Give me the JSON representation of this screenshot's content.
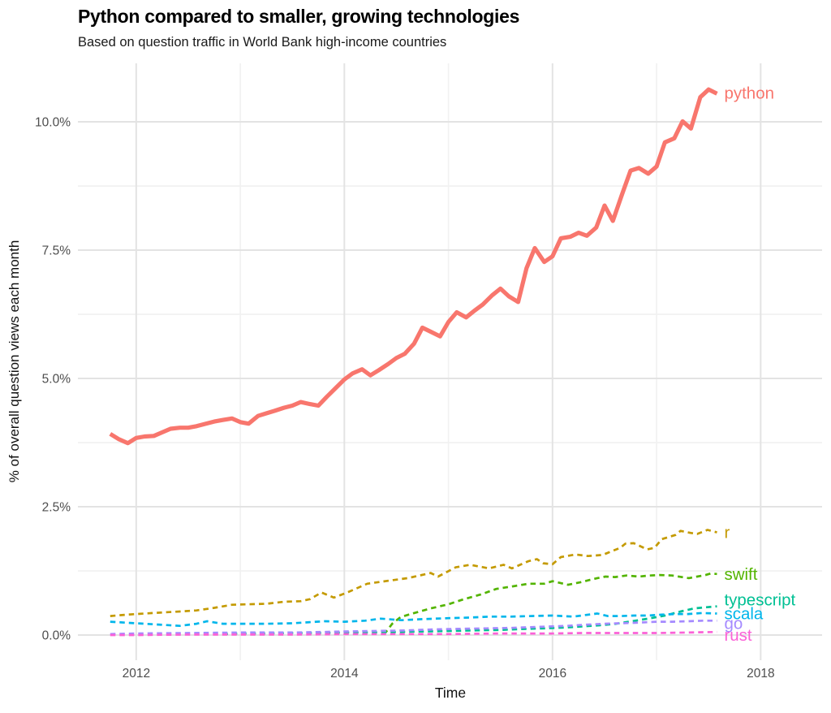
{
  "header": {
    "title": "Python compared to smaller, growing technologies",
    "subtitle": "Based on question traffic in World Bank high-income countries"
  },
  "chart_data": {
    "type": "line",
    "title": "Python compared to smaller, growing technologies",
    "subtitle": "Based on question traffic in World Bank high-income countries",
    "xlabel": "Time",
    "ylabel": "% of overall question views each month",
    "xlim": [
      2011.44,
      2018.59
    ],
    "ylim": [
      -0.49,
      11.14
    ],
    "grid": "major+minor",
    "plot_bg": "#ffffff",
    "grid_major_color": "#e3e3e3",
    "grid_minor_color": "#f1f1f1",
    "tick_label_color": "#4d4d4d",
    "legend_position": "labels-at-line-ends",
    "x_ticks": {
      "major": [
        2012,
        2014,
        2016,
        2018
      ],
      "minor": [
        2013,
        2015,
        2017
      ],
      "labels": [
        "2012",
        "2014",
        "2016",
        "2018"
      ]
    },
    "y_ticks": {
      "major": [
        0,
        2.5,
        5,
        7.5,
        10
      ],
      "minor": [
        1.25,
        3.75,
        6.25,
        8.75
      ],
      "labels": [
        "0.0%",
        "2.5%",
        "5.0%",
        "7.5%",
        "10.0%"
      ]
    },
    "series": [
      {
        "name": "r",
        "color": "#C49A00",
        "line_style": "dashed",
        "line_width": 2.7,
        "label_dy": 0,
        "points": [
          [
            2011.75,
            0.37
          ],
          [
            2011.92,
            0.4
          ],
          [
            2012.08,
            0.42
          ],
          [
            2012.25,
            0.44
          ],
          [
            2012.42,
            0.46
          ],
          [
            2012.58,
            0.48
          ],
          [
            2012.75,
            0.53
          ],
          [
            2012.92,
            0.59
          ],
          [
            2013.08,
            0.6
          ],
          [
            2013.25,
            0.61
          ],
          [
            2013.42,
            0.65
          ],
          [
            2013.58,
            0.66
          ],
          [
            2013.67,
            0.7
          ],
          [
            2013.78,
            0.83
          ],
          [
            2013.9,
            0.73
          ],
          [
            2014.04,
            0.84
          ],
          [
            2014.22,
            1.0
          ],
          [
            2014.43,
            1.06
          ],
          [
            2014.61,
            1.11
          ],
          [
            2014.83,
            1.21
          ],
          [
            2014.9,
            1.14
          ],
          [
            2015.07,
            1.32
          ],
          [
            2015.21,
            1.37
          ],
          [
            2015.39,
            1.3
          ],
          [
            2015.53,
            1.37
          ],
          [
            2015.61,
            1.3
          ],
          [
            2015.77,
            1.44
          ],
          [
            2015.85,
            1.48
          ],
          [
            2015.91,
            1.4
          ],
          [
            2016.0,
            1.38
          ],
          [
            2016.08,
            1.52
          ],
          [
            2016.22,
            1.57
          ],
          [
            2016.34,
            1.54
          ],
          [
            2016.48,
            1.56
          ],
          [
            2016.65,
            1.7
          ],
          [
            2016.7,
            1.78
          ],
          [
            2016.78,
            1.79
          ],
          [
            2016.91,
            1.67
          ],
          [
            2016.98,
            1.7
          ],
          [
            2017.05,
            1.87
          ],
          [
            2017.18,
            1.95
          ],
          [
            2017.23,
            2.03
          ],
          [
            2017.33,
            1.99
          ],
          [
            2017.39,
            1.97
          ],
          [
            2017.49,
            2.05
          ],
          [
            2017.58,
            2.0
          ]
        ]
      },
      {
        "name": "swift",
        "color": "#53B400",
        "line_style": "dashed",
        "line_width": 2.7,
        "label_dy": 0,
        "points": [
          [
            2014.38,
            0.01
          ],
          [
            2014.46,
            0.22
          ],
          [
            2014.54,
            0.35
          ],
          [
            2014.67,
            0.43
          ],
          [
            2014.83,
            0.52
          ],
          [
            2015.0,
            0.6
          ],
          [
            2015.15,
            0.7
          ],
          [
            2015.31,
            0.79
          ],
          [
            2015.46,
            0.9
          ],
          [
            2015.62,
            0.95
          ],
          [
            2015.77,
            1.0
          ],
          [
            2015.92,
            1.0
          ],
          [
            2016.0,
            1.05
          ],
          [
            2016.15,
            0.98
          ],
          [
            2016.27,
            1.03
          ],
          [
            2016.43,
            1.11
          ],
          [
            2016.51,
            1.14
          ],
          [
            2016.6,
            1.13
          ],
          [
            2016.71,
            1.16
          ],
          [
            2016.83,
            1.14
          ],
          [
            2016.93,
            1.16
          ],
          [
            2017.03,
            1.17
          ],
          [
            2017.15,
            1.16
          ],
          [
            2017.24,
            1.13
          ],
          [
            2017.31,
            1.11
          ],
          [
            2017.39,
            1.14
          ],
          [
            2017.47,
            1.17
          ],
          [
            2017.52,
            1.2
          ],
          [
            2017.58,
            1.19
          ]
        ]
      },
      {
        "name": "typescript",
        "color": "#00C094",
        "line_style": "dashed",
        "line_width": 2.7,
        "label_dy": -8,
        "points": [
          [
            2012.83,
            0.02
          ],
          [
            2013.0,
            0.03
          ],
          [
            2013.25,
            0.03
          ],
          [
            2013.5,
            0.04
          ],
          [
            2013.75,
            0.04
          ],
          [
            2014.0,
            0.05
          ],
          [
            2014.25,
            0.05
          ],
          [
            2014.5,
            0.06
          ],
          [
            2014.75,
            0.07
          ],
          [
            2015.0,
            0.08
          ],
          [
            2015.25,
            0.09
          ],
          [
            2015.5,
            0.1
          ],
          [
            2015.75,
            0.12
          ],
          [
            2015.92,
            0.13
          ],
          [
            2016.14,
            0.15
          ],
          [
            2016.3,
            0.17
          ],
          [
            2016.45,
            0.19
          ],
          [
            2016.61,
            0.22
          ],
          [
            2016.76,
            0.27
          ],
          [
            2016.92,
            0.32
          ],
          [
            2017.08,
            0.38
          ],
          [
            2017.23,
            0.46
          ],
          [
            2017.36,
            0.52
          ],
          [
            2017.47,
            0.54
          ],
          [
            2017.58,
            0.56
          ]
        ]
      },
      {
        "name": "scala",
        "color": "#00B6EB",
        "line_style": "dashed",
        "line_width": 2.7,
        "label_dy": 0,
        "points": [
          [
            2011.75,
            0.26
          ],
          [
            2011.92,
            0.24
          ],
          [
            2012.08,
            0.22
          ],
          [
            2012.25,
            0.2
          ],
          [
            2012.42,
            0.18
          ],
          [
            2012.58,
            0.22
          ],
          [
            2012.68,
            0.27
          ],
          [
            2012.83,
            0.22
          ],
          [
            2013.0,
            0.22
          ],
          [
            2013.25,
            0.22
          ],
          [
            2013.5,
            0.23
          ],
          [
            2013.81,
            0.27
          ],
          [
            2014.0,
            0.26
          ],
          [
            2014.2,
            0.28
          ],
          [
            2014.35,
            0.32
          ],
          [
            2014.55,
            0.29
          ],
          [
            2014.75,
            0.31
          ],
          [
            2015.0,
            0.33
          ],
          [
            2015.2,
            0.34
          ],
          [
            2015.4,
            0.36
          ],
          [
            2015.6,
            0.36
          ],
          [
            2015.8,
            0.37
          ],
          [
            2016.0,
            0.38
          ],
          [
            2016.2,
            0.36
          ],
          [
            2016.43,
            0.42
          ],
          [
            2016.53,
            0.37
          ],
          [
            2016.66,
            0.37
          ],
          [
            2016.79,
            0.38
          ],
          [
            2016.92,
            0.38
          ],
          [
            2017.05,
            0.4
          ],
          [
            2017.2,
            0.41
          ],
          [
            2017.3,
            0.41
          ],
          [
            2017.44,
            0.43
          ],
          [
            2017.58,
            0.42
          ]
        ]
      },
      {
        "name": "go",
        "color": "#A58AFF",
        "line_style": "dashed",
        "line_width": 2.7,
        "label_dy": 3,
        "points": [
          [
            2011.75,
            0.02
          ],
          [
            2012.0,
            0.03
          ],
          [
            2012.5,
            0.04
          ],
          [
            2013.0,
            0.05
          ],
          [
            2013.5,
            0.05
          ],
          [
            2013.81,
            0.06
          ],
          [
            2014.0,
            0.07
          ],
          [
            2014.3,
            0.08
          ],
          [
            2014.6,
            0.09
          ],
          [
            2014.85,
            0.11
          ],
          [
            2015.1,
            0.12
          ],
          [
            2015.37,
            0.13
          ],
          [
            2015.6,
            0.14
          ],
          [
            2015.88,
            0.16
          ],
          [
            2016.14,
            0.18
          ],
          [
            2016.3,
            0.2
          ],
          [
            2016.5,
            0.22
          ],
          [
            2016.65,
            0.23
          ],
          [
            2016.8,
            0.24
          ],
          [
            2017.0,
            0.26
          ],
          [
            2017.15,
            0.26
          ],
          [
            2017.3,
            0.27
          ],
          [
            2017.45,
            0.28
          ],
          [
            2017.58,
            0.28
          ]
        ]
      },
      {
        "name": "rust",
        "color": "#FB61D7",
        "line_style": "dashed",
        "line_width": 2.7,
        "label_dy": 4,
        "points": [
          [
            2011.75,
            0.0
          ],
          [
            2012.0,
            0.0
          ],
          [
            2012.5,
            0.01
          ],
          [
            2013.0,
            0.01
          ],
          [
            2013.5,
            0.01
          ],
          [
            2014.0,
            0.02
          ],
          [
            2014.5,
            0.02
          ],
          [
            2015.0,
            0.02
          ],
          [
            2015.5,
            0.03
          ],
          [
            2016.0,
            0.03
          ],
          [
            2016.3,
            0.04
          ],
          [
            2016.6,
            0.04
          ],
          [
            2017.0,
            0.04
          ],
          [
            2017.3,
            0.05
          ],
          [
            2017.58,
            0.06
          ]
        ]
      },
      {
        "name": "python",
        "color": "#F8766D",
        "line_style": "solid",
        "line_width": 5.2,
        "label_dy": -1,
        "points": [
          [
            2011.75,
            3.92
          ],
          [
            2011.83,
            3.82
          ],
          [
            2011.92,
            3.74
          ],
          [
            2012.0,
            3.84
          ],
          [
            2012.08,
            3.87
          ],
          [
            2012.17,
            3.88
          ],
          [
            2012.25,
            3.95
          ],
          [
            2012.33,
            4.02
          ],
          [
            2012.42,
            4.04
          ],
          [
            2012.5,
            4.04
          ],
          [
            2012.58,
            4.07
          ],
          [
            2012.67,
            4.12
          ],
          [
            2012.75,
            4.16
          ],
          [
            2012.83,
            4.19
          ],
          [
            2012.92,
            4.22
          ],
          [
            2013.0,
            4.15
          ],
          [
            2013.08,
            4.12
          ],
          [
            2013.17,
            4.27
          ],
          [
            2013.25,
            4.32
          ],
          [
            2013.33,
            4.37
          ],
          [
            2013.42,
            4.43
          ],
          [
            2013.5,
            4.47
          ],
          [
            2013.58,
            4.54
          ],
          [
            2013.67,
            4.5
          ],
          [
            2013.75,
            4.47
          ],
          [
            2013.83,
            4.64
          ],
          [
            2013.92,
            4.82
          ],
          [
            2014.0,
            4.98
          ],
          [
            2014.08,
            5.1
          ],
          [
            2014.17,
            5.18
          ],
          [
            2014.25,
            5.06
          ],
          [
            2014.33,
            5.16
          ],
          [
            2014.42,
            5.28
          ],
          [
            2014.5,
            5.4
          ],
          [
            2014.58,
            5.48
          ],
          [
            2014.67,
            5.68
          ],
          [
            2014.75,
            5.99
          ],
          [
            2014.83,
            5.91
          ],
          [
            2014.92,
            5.82
          ],
          [
            2015.0,
            6.1
          ],
          [
            2015.08,
            6.29
          ],
          [
            2015.17,
            6.19
          ],
          [
            2015.25,
            6.32
          ],
          [
            2015.33,
            6.44
          ],
          [
            2015.42,
            6.62
          ],
          [
            2015.5,
            6.75
          ],
          [
            2015.58,
            6.6
          ],
          [
            2015.67,
            6.49
          ],
          [
            2015.75,
            7.15
          ],
          [
            2015.83,
            7.54
          ],
          [
            2015.92,
            7.27
          ],
          [
            2016.0,
            7.38
          ],
          [
            2016.08,
            7.73
          ],
          [
            2016.17,
            7.76
          ],
          [
            2016.25,
            7.84
          ],
          [
            2016.33,
            7.78
          ],
          [
            2016.42,
            7.94
          ],
          [
            2016.5,
            8.37
          ],
          [
            2016.58,
            8.07
          ],
          [
            2016.67,
            8.6
          ],
          [
            2016.75,
            9.05
          ],
          [
            2016.83,
            9.1
          ],
          [
            2016.92,
            8.99
          ],
          [
            2017.0,
            9.13
          ],
          [
            2017.08,
            9.6
          ],
          [
            2017.17,
            9.68
          ],
          [
            2017.25,
            10.01
          ],
          [
            2017.33,
            9.87
          ],
          [
            2017.42,
            10.48
          ],
          [
            2017.5,
            10.63
          ],
          [
            2017.58,
            10.55
          ]
        ]
      }
    ]
  }
}
